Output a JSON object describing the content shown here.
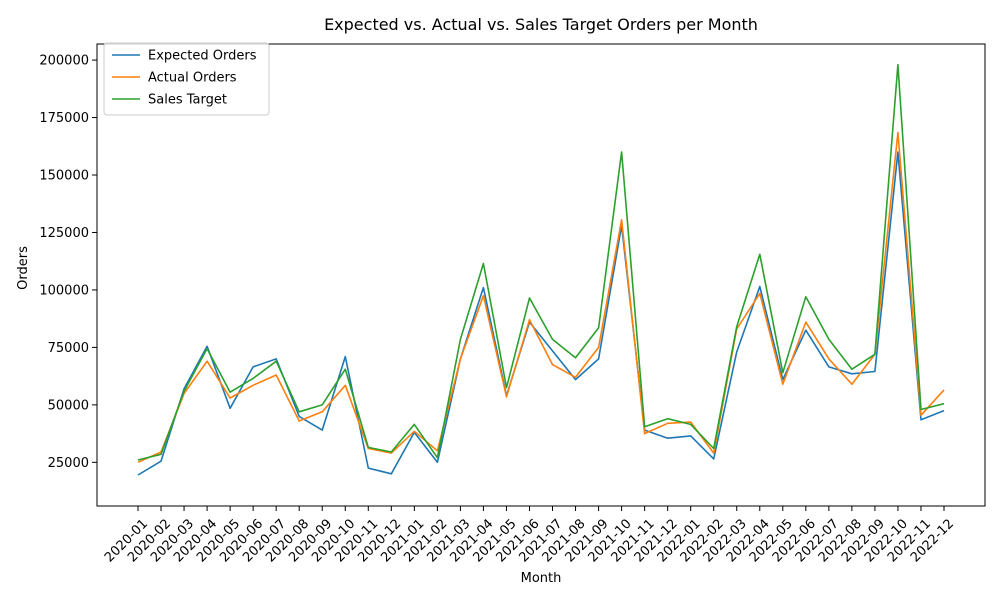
{
  "chart_data": {
    "type": "line",
    "title": "Expected vs. Actual vs. Sales Target Orders per Month",
    "xlabel": "Month",
    "ylabel": "Orders",
    "ylim": [
      6000,
      207000
    ],
    "yticks": [
      25000,
      50000,
      75000,
      100000,
      125000,
      150000,
      175000,
      200000
    ],
    "legend_position": "top-left",
    "grid": false,
    "categories": [
      "2020-01",
      "2020-02",
      "2020-03",
      "2020-04",
      "2020-05",
      "2020-06",
      "2020-07",
      "2020-08",
      "2020-09",
      "2020-10",
      "2020-11",
      "2020-12",
      "2021-01",
      "2021-02",
      "2021-03",
      "2021-04",
      "2021-05",
      "2021-06",
      "2021-07",
      "2021-08",
      "2021-09",
      "2021-10",
      "2021-11",
      "2021-12",
      "2022-01",
      "2022-02",
      "2022-03",
      "2022-04",
      "2022-05",
      "2022-06",
      "2022-07",
      "2022-08",
      "2022-09",
      "2022-10",
      "2022-11",
      "2022-12"
    ],
    "series": [
      {
        "name": "Expected Orders",
        "color": "#1f77b4",
        "values": [
          19500,
          25500,
          57000,
          75500,
          48500,
          66500,
          70000,
          45000,
          39000,
          71000,
          22500,
          20000,
          38000,
          25000,
          70000,
          101000,
          54000,
          86000,
          73500,
          61000,
          70000,
          128000,
          39000,
          35500,
          36500,
          26500,
          73000,
          101500,
          61000,
          82500,
          66500,
          63500,
          64500,
          160000,
          43500,
          47500
        ]
      },
      {
        "name": "Actual Orders",
        "color": "#ff7f0e",
        "values": [
          25000,
          29500,
          55000,
          69000,
          53000,
          58500,
          63000,
          43000,
          47000,
          58500,
          31000,
          29000,
          38500,
          30000,
          70000,
          97500,
          53500,
          87000,
          67500,
          62000,
          75000,
          130500,
          37500,
          42000,
          42500,
          29000,
          83000,
          98500,
          59000,
          86000,
          70000,
          59000,
          72000,
          168500,
          45500,
          56500
        ]
      },
      {
        "name": "Sales Target",
        "color": "#2ca02c",
        "values": [
          26000,
          28500,
          56000,
          74500,
          55500,
          61500,
          69000,
          47000,
          50000,
          65500,
          31500,
          29500,
          41500,
          27000,
          78500,
          111500,
          57500,
          96500,
          78500,
          70500,
          83500,
          160000,
          40500,
          44000,
          41500,
          31000,
          84000,
          115500,
          64000,
          97000,
          78500,
          65500,
          72000,
          198000,
          48000,
          50500
        ]
      }
    ]
  }
}
